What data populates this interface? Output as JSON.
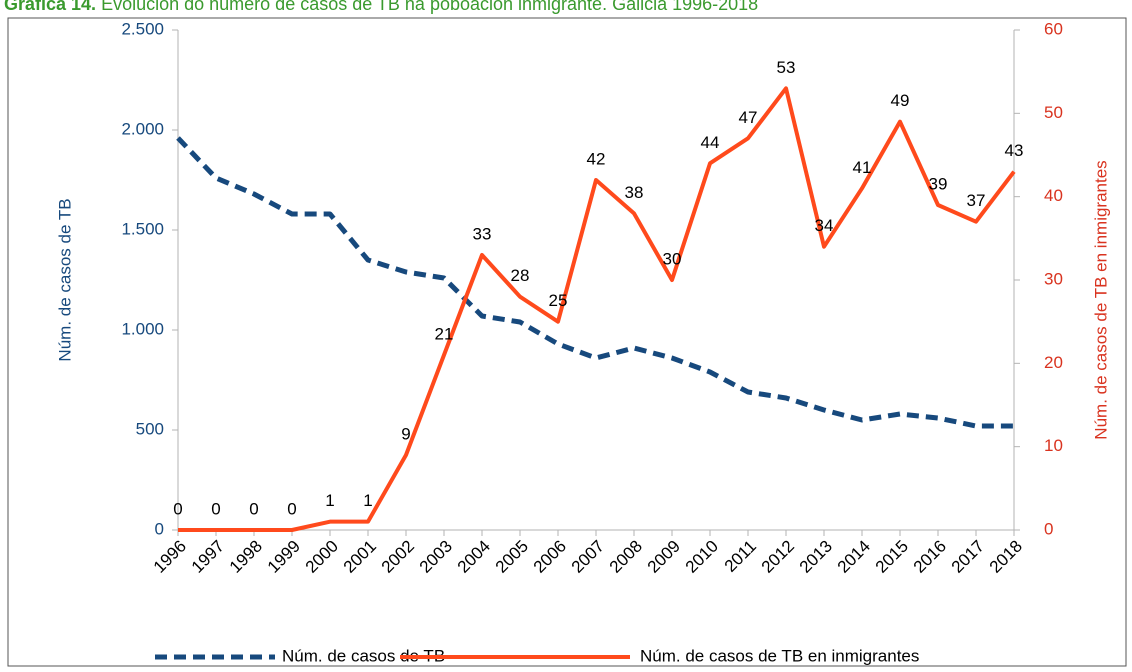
{
  "chart_data": {
    "type": "line",
    "title_label": "Gráfica 14.",
    "title": "Evolución do número de casos de TB na poboación inmigrante. Galicia 1996-2018",
    "ylabel": "Núm. de casos de TB",
    "y2label": "Núm. de casos de TB en inmigrantes",
    "categories": [
      "1996",
      "1997",
      "1998",
      "1999",
      "2000",
      "2001",
      "2002",
      "2003",
      "2004",
      "2005",
      "2006",
      "2007",
      "2008",
      "2009",
      "2010",
      "2011",
      "2012",
      "2013",
      "2014",
      "2015",
      "2016",
      "2017",
      "2018"
    ],
    "ylim": [
      0,
      2500
    ],
    "yticks": [
      0,
      500,
      {
        "value": 1000,
        "label": "1.000"
      },
      {
        "value": 1500,
        "label": "1.500"
      },
      {
        "value": 2000,
        "label": "2.000"
      },
      {
        "value": 2500,
        "label": "2.500"
      }
    ],
    "y2lim": [
      0,
      60
    ],
    "y2ticks": [
      0,
      10,
      20,
      30,
      40,
      50,
      60
    ],
    "series": [
      {
        "name": "Núm. de casos de TB",
        "color": "#17497d",
        "dashed": true,
        "axis": "y",
        "values": [
          1960,
          1760,
          1680,
          1580,
          1580,
          1350,
          1290,
          1260,
          1070,
          1040,
          930,
          860,
          910,
          860,
          790,
          690,
          660,
          600,
          550,
          580,
          560,
          520,
          520
        ]
      },
      {
        "name": "Núm. de casos de TB en inmigrantes",
        "color": "#ff4a1c",
        "dashed": false,
        "axis": "y2",
        "show_labels": true,
        "values": [
          0,
          0,
          0,
          0,
          1,
          1,
          9,
          21,
          33,
          28,
          25,
          42,
          38,
          30,
          44,
          47,
          53,
          34,
          41,
          49,
          39,
          37,
          43
        ]
      }
    ]
  }
}
